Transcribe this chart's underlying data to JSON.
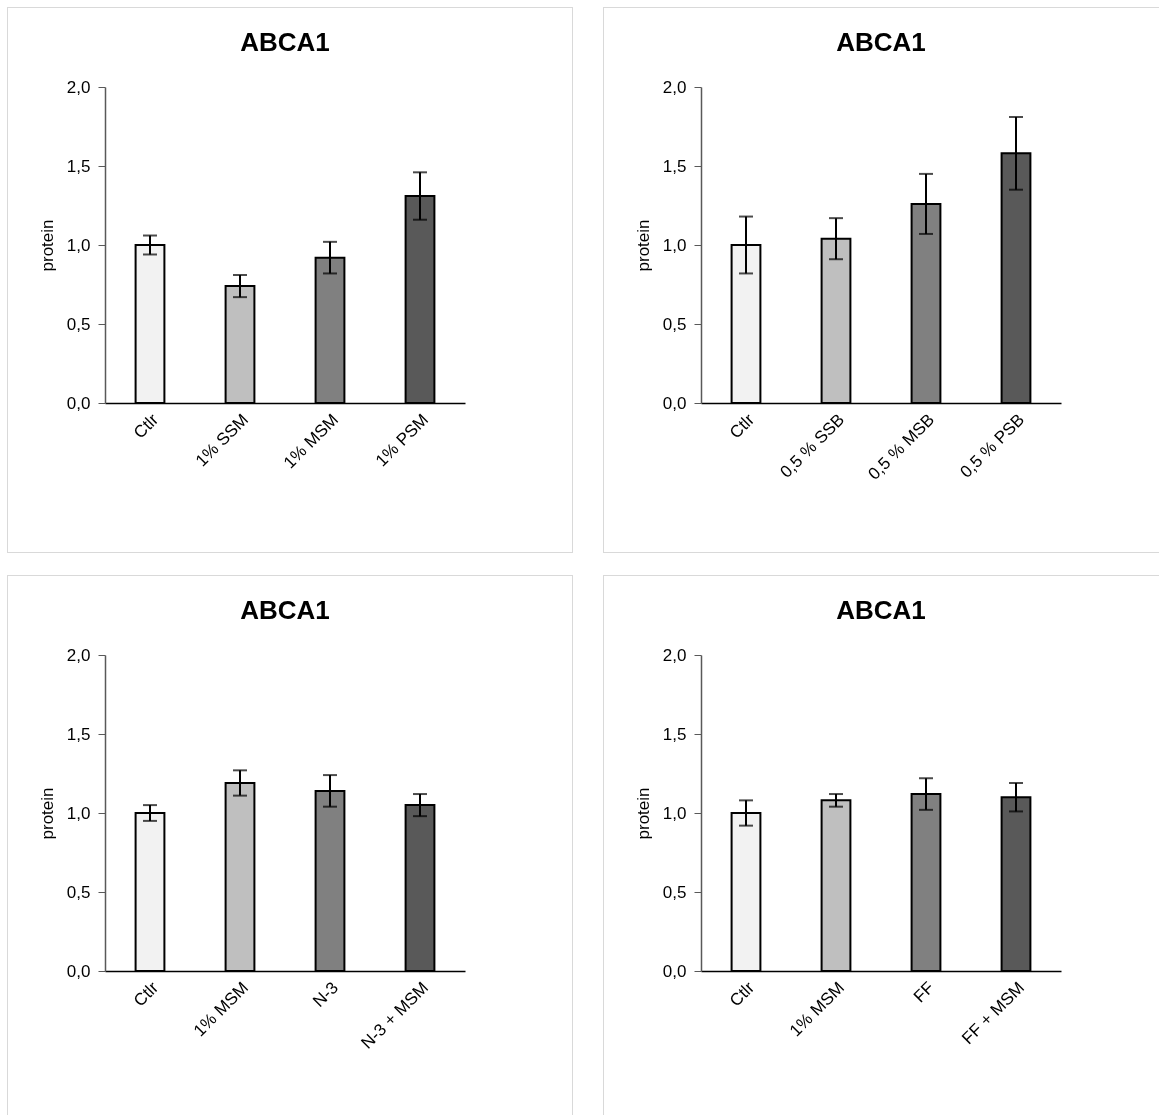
{
  "chart_data": [
    {
      "type": "bar",
      "title": "ABCA1",
      "ylabel": "protein",
      "categories": [
        "Ctlr",
        "1% SSM",
        "1% MSM",
        "1% PSM"
      ],
      "values": [
        1.0,
        0.74,
        0.92,
        1.31
      ],
      "errors": [
        0.06,
        0.07,
        0.1,
        0.15
      ],
      "colors": [
        "#f2f2f2",
        "#bfbfbf",
        "#808080",
        "#595959"
      ],
      "ylim": [
        0,
        2
      ],
      "yticks": [
        {
          "value": 0,
          "label": "0,0"
        },
        {
          "value": 0.5,
          "label": "0,5"
        },
        {
          "value": 1,
          "label": "1,0"
        },
        {
          "value": 1.5,
          "label": "1,5"
        },
        {
          "value": 2,
          "label": "2,0"
        }
      ]
    },
    {
      "type": "bar",
      "title": "ABCA1",
      "ylabel": "protein",
      "categories": [
        "Ctlr",
        "0,5 % SSB",
        "0,5 % MSB",
        "0,5 % PSB"
      ],
      "values": [
        1.0,
        1.04,
        1.26,
        1.58
      ],
      "errors": [
        0.18,
        0.13,
        0.19,
        0.23
      ],
      "colors": [
        "#f2f2f2",
        "#bfbfbf",
        "#808080",
        "#595959"
      ],
      "ylim": [
        0,
        2
      ],
      "yticks": [
        {
          "value": 0,
          "label": "0,0"
        },
        {
          "value": 0.5,
          "label": "0,5"
        },
        {
          "value": 1,
          "label": "1,0"
        },
        {
          "value": 1.5,
          "label": "1,5"
        },
        {
          "value": 2,
          "label": "2,0"
        }
      ]
    },
    {
      "type": "bar",
      "title": "ABCA1",
      "ylabel": "protein",
      "categories": [
        "Ctlr",
        "1% MSM",
        "N-3",
        "N-3 + MSM"
      ],
      "values": [
        1.0,
        1.19,
        1.14,
        1.05
      ],
      "errors": [
        0.05,
        0.08,
        0.1,
        0.07
      ],
      "colors": [
        "#f2f2f2",
        "#bfbfbf",
        "#808080",
        "#595959"
      ],
      "ylim": [
        0,
        2
      ],
      "yticks": [
        {
          "value": 0,
          "label": "0,0"
        },
        {
          "value": 0.5,
          "label": "0,5"
        },
        {
          "value": 1,
          "label": "1,0"
        },
        {
          "value": 1.5,
          "label": "1,5"
        },
        {
          "value": 2,
          "label": "2,0"
        }
      ]
    },
    {
      "type": "bar",
      "title": "ABCA1",
      "ylabel": "protein",
      "categories": [
        "Ctlr",
        "1% MSM",
        "FF",
        "FF + MSM"
      ],
      "values": [
        1.0,
        1.08,
        1.12,
        1.1
      ],
      "errors": [
        0.08,
        0.04,
        0.1,
        0.09
      ],
      "colors": [
        "#f2f2f2",
        "#bfbfbf",
        "#808080",
        "#595959"
      ],
      "ylim": [
        0,
        2
      ],
      "yticks": [
        {
          "value": 0,
          "label": "0,0"
        },
        {
          "value": 0.5,
          "label": "0,5"
        },
        {
          "value": 1,
          "label": "1,0"
        },
        {
          "value": 1.5,
          "label": "1,5"
        },
        {
          "value": 2,
          "label": "2,0"
        }
      ]
    }
  ]
}
